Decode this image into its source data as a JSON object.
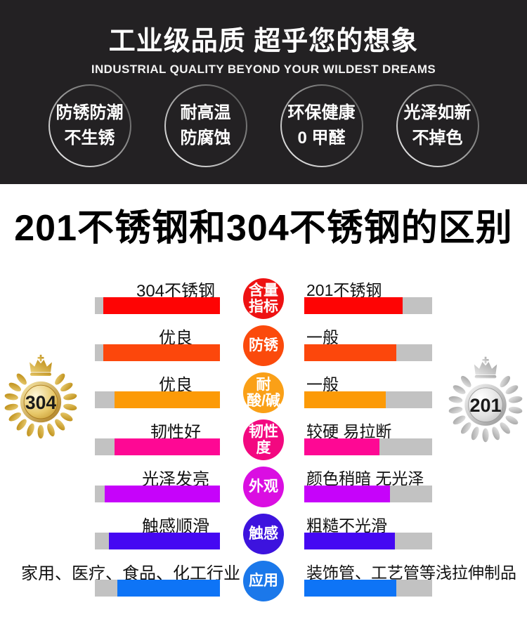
{
  "header": {
    "bg_color": "#232123",
    "title": "工业级品质 超乎您的想象",
    "subtitle": "INDUSTRIAL QUALITY BEYOND YOUR WILDEST DREAMS",
    "features": [
      {
        "line1": "防锈防潮",
        "line2": "不生锈"
      },
      {
        "line1": "耐高温",
        "line2": "防腐蚀"
      },
      {
        "line1": "环保健康",
        "line2": "0 甲醛"
      },
      {
        "line1": "光泽如新",
        "line2": "不掉色"
      }
    ]
  },
  "section_title": "201不锈钢和304不锈钢的区别",
  "comparison": {
    "left_column_product": "304不锈钢",
    "right_column_product": "201不锈钢",
    "left_badge": {
      "number": "304",
      "style": "gold"
    },
    "right_badge": {
      "number": "201",
      "style": "silver"
    },
    "track_color": "#c2c2c2",
    "rows": [
      {
        "category_lines": [
          "含量",
          "指标"
        ],
        "left_label": "304不锈钢",
        "right_label": "201不锈钢",
        "color": "#ee1112",
        "bar_color": "#fe0404",
        "left_gray_pct": 7,
        "right_fill_pct": 77
      },
      {
        "category_lines": [
          "防锈"
        ],
        "left_label": "优良",
        "right_label": "一般",
        "color": "#fb4a0c",
        "bar_color": "#fc470c",
        "left_gray_pct": 7,
        "right_fill_pct": 72
      },
      {
        "category_lines": [
          "耐",
          "酸/碱"
        ],
        "left_label": "优良",
        "right_label": "一般",
        "color": "#faa017",
        "bar_color": "#fc9a07",
        "left_gray_pct": 16,
        "right_fill_pct": 64
      },
      {
        "category_lines": [
          "韧性",
          "度"
        ],
        "left_label": "韧性好",
        "right_label": "较硬 易拉断",
        "color": "#f30880",
        "bar_color": "#fe0894",
        "left_gray_pct": 16,
        "right_fill_pct": 59
      },
      {
        "category_lines": [
          "外观"
        ],
        "left_label": "光泽发亮",
        "right_label": "颜色稍暗 无光泽",
        "color": "#da0ee2",
        "bar_color": "#c603fa",
        "left_gray_pct": 8,
        "right_fill_pct": 67
      },
      {
        "category_lines": [
          "触感"
        ],
        "left_label": "触感顺滑",
        "right_label": "粗糙不光滑",
        "color": "#3d13de",
        "bar_color": "#4508f2",
        "left_gray_pct": 11,
        "right_fill_pct": 71
      },
      {
        "category_lines": [
          "应用"
        ],
        "left_label": "家用、医疗、食品、化工行业",
        "right_label": "装饰管、工艺管等浅拉伸制品",
        "color": "#1b78ea",
        "bar_color": "#0e74f6",
        "left_gray_pct": 18,
        "right_fill_pct": 72
      }
    ]
  }
}
